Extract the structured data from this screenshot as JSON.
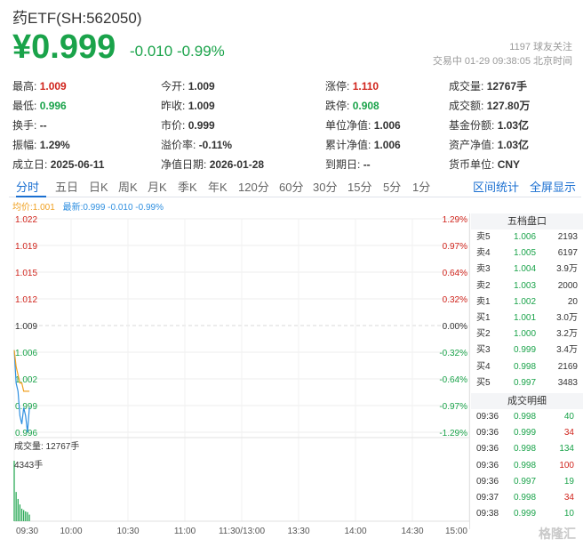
{
  "header": {
    "title": "药ETF(SH:562050)",
    "price": "¥0.999",
    "change": "-0.010",
    "change_pct": "-0.99%",
    "followers": "1197  球友关注",
    "trade_status": "交易中  01-29  09:38:05  北京时间"
  },
  "stats": {
    "high_label": "最高:",
    "high": "1.009",
    "open_label": "今开:",
    "open": "1.009",
    "limit_up_label": "涨停:",
    "limit_up": "1.110",
    "volume_label": "成交量:",
    "volume": "12767手",
    "low_label": "最低:",
    "low": "0.996",
    "prev_close_label": "昨收:",
    "prev_close": "1.009",
    "limit_down_label": "跌停:",
    "limit_down": "0.908",
    "amount_label": "成交额:",
    "amount": "127.80万",
    "turnover_label": "换手:",
    "turnover": "--",
    "market_price_label": "市价:",
    "market_price": "0.999",
    "nav_label": "单位净值:",
    "nav": "1.006",
    "fund_shares_label": "基金份额:",
    "fund_shares": "1.03亿",
    "amplitude_label": "振幅:",
    "amplitude": "1.29%",
    "premium_label": "溢价率:",
    "premium": "-0.11%",
    "acc_nav_label": "累计净值:",
    "acc_nav": "1.006",
    "net_assets_label": "资产净值:",
    "net_assets": "1.03亿",
    "inception_label": "成立日:",
    "inception": "2025-06-11",
    "nav_date_label": "净值日期:",
    "nav_date": "2026-01-28",
    "maturity_label": "到期日:",
    "maturity": "--",
    "currency_label": "货币单位:",
    "currency": "CNY"
  },
  "tabs": [
    "分时",
    "五日",
    "日K",
    "周K",
    "月K",
    "季K",
    "年K",
    "120分",
    "60分",
    "30分",
    "15分",
    "5分",
    "1分"
  ],
  "right_tabs": [
    "区间统计",
    "全屏显示"
  ],
  "legend": {
    "avg": "均价:1.001",
    "latest": "最新:0.999 -0.010 -0.99%"
  },
  "chart_data": {
    "type": "line",
    "title": "",
    "prev_close": 1.009,
    "y_prices": [
      "1.022",
      "1.019",
      "1.015",
      "1.012",
      "1.009",
      "1.006",
      "1.002",
      "0.999",
      "0.996"
    ],
    "y_pcts": [
      "1.29%",
      "0.97%",
      "0.64%",
      "0.32%",
      "0.00%",
      "-0.32%",
      "-0.64%",
      "-0.97%",
      "-1.29%"
    ],
    "ylim": [
      0.996,
      1.022
    ],
    "x_ticks": [
      "09:30",
      "10:00",
      "10:30",
      "11:00",
      "11:30/13:00",
      "13:30",
      "14:00",
      "14:30",
      "15:00"
    ],
    "series": [
      {
        "name": "最新",
        "color": "#2f8fe0",
        "x": [
          "09:30",
          "09:31",
          "09:32",
          "09:33",
          "09:34",
          "09:35",
          "09:36",
          "09:37",
          "09:38"
        ],
        "values": [
          1.006,
          1.002,
          1.001,
          0.998,
          0.997,
          0.999,
          0.998,
          0.996,
          0.999
        ]
      },
      {
        "name": "均价",
        "color": "#f0a020",
        "x": [
          "09:30",
          "09:31",
          "09:32",
          "09:33",
          "09:34",
          "09:35",
          "09:36",
          "09:37",
          "09:38"
        ],
        "values": [
          1.006,
          1.004,
          1.003,
          1.002,
          1.002,
          1.001,
          1.001,
          1.001,
          1.001
        ]
      }
    ],
    "volume": {
      "label": "成交量: 12767手",
      "max_label": "4343手",
      "ymax": 4343,
      "values": [
        4343,
        2100,
        1600,
        1200,
        900,
        800,
        700,
        650,
        474
      ]
    }
  },
  "order_book": {
    "title": "五档盘口",
    "asks": [
      {
        "name": "卖5",
        "price": "1.006",
        "vol": "2193"
      },
      {
        "name": "卖4",
        "price": "1.005",
        "vol": "6197"
      },
      {
        "name": "卖3",
        "price": "1.004",
        "vol": "3.9万"
      },
      {
        "name": "卖2",
        "price": "1.003",
        "vol": "2000"
      },
      {
        "name": "卖1",
        "price": "1.002",
        "vol": "20"
      }
    ],
    "bids": [
      {
        "name": "买1",
        "price": "1.001",
        "vol": "3.0万"
      },
      {
        "name": "买2",
        "price": "1.000",
        "vol": "3.2万"
      },
      {
        "name": "买3",
        "price": "0.999",
        "vol": "3.4万"
      },
      {
        "name": "买4",
        "price": "0.998",
        "vol": "2169"
      },
      {
        "name": "买5",
        "price": "0.997",
        "vol": "3483"
      }
    ]
  },
  "deals": {
    "title": "成交明细",
    "rows": [
      {
        "time": "09:36",
        "price": "0.998",
        "vol": "40",
        "side": "buy"
      },
      {
        "time": "09:36",
        "price": "0.999",
        "vol": "34",
        "side": "sell"
      },
      {
        "time": "09:36",
        "price": "0.998",
        "vol": "134",
        "side": "buy"
      },
      {
        "time": "09:36",
        "price": "0.998",
        "vol": "100",
        "side": "sell"
      },
      {
        "time": "09:36",
        "price": "0.997",
        "vol": "19",
        "side": "buy"
      },
      {
        "time": "09:37",
        "price": "0.998",
        "vol": "34",
        "side": "sell"
      },
      {
        "time": "09:38",
        "price": "0.999",
        "vol": "10",
        "side": "buy"
      }
    ]
  },
  "watermark": "格隆汇",
  "colors": {
    "up": "#d0241c",
    "down": "#1aa34a",
    "accent": "#1a6fd1",
    "price_line": "#2f8fe0",
    "avg_line": "#f0a020"
  }
}
